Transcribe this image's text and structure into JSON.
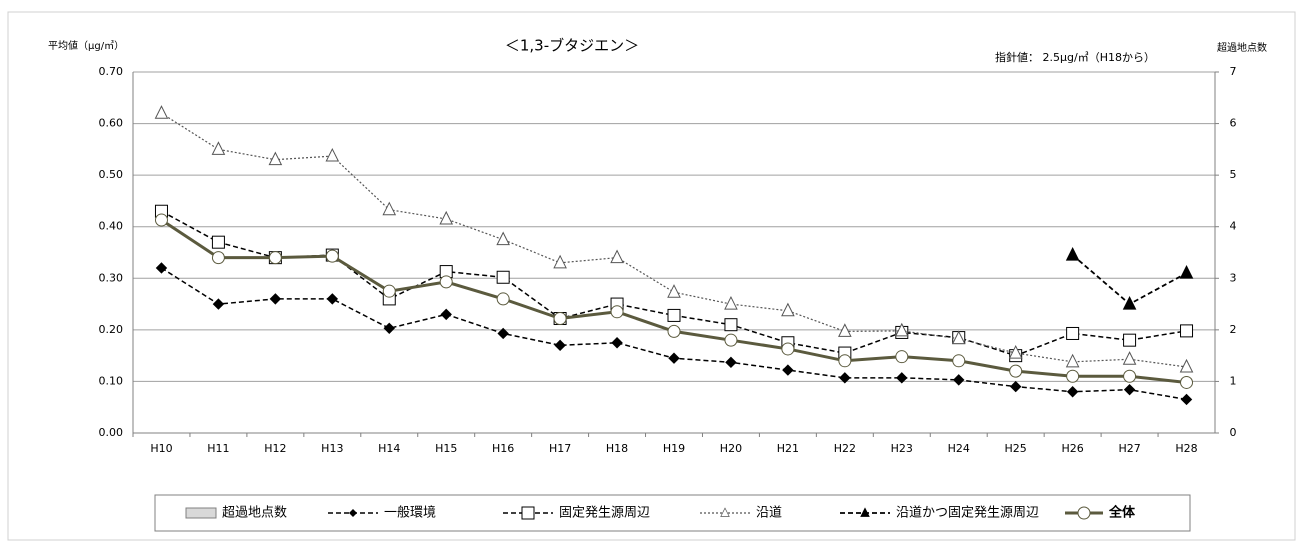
{
  "chart_data": {
    "type": "line",
    "title": "＜1,3-ブタジエン＞",
    "y_label": "平均値（μg/㎥）",
    "y2_label": "超過地点数",
    "annotation": "指針値： 2.5μg/㎥（H18から）",
    "categories": [
      "H10",
      "H11",
      "H12",
      "H13",
      "H14",
      "H15",
      "H16",
      "H17",
      "H18",
      "H19",
      "H20",
      "H21",
      "H22",
      "H23",
      "H24",
      "H25",
      "H26",
      "H27",
      "H28"
    ],
    "ylim": [
      0,
      0.7
    ],
    "yticks": [
      {
        "value": 0,
        "label": "0.00"
      },
      {
        "value": 0.1,
        "label": "0.10"
      },
      {
        "value": 0.2,
        "label": "0.20"
      },
      {
        "value": 0.3,
        "label": "0.30"
      },
      {
        "value": 0.4,
        "label": "0.40"
      },
      {
        "value": 0.5,
        "label": "0.50"
      },
      {
        "value": 0.6,
        "label": "0.60"
      },
      {
        "value": 0.7,
        "label": "0.70"
      }
    ],
    "y2lim": [
      0,
      7
    ],
    "y2ticks": [
      0,
      1,
      2,
      3,
      4,
      5,
      6,
      7
    ],
    "grid": true,
    "series": [
      {
        "name": "超過地点数",
        "type": "bar",
        "axis": "y2",
        "color": "#d9d9d9",
        "values": [
          0,
          0,
          0,
          0,
          0,
          0,
          0,
          0,
          0,
          0,
          0,
          0,
          0,
          0,
          0,
          0,
          0,
          0,
          0
        ]
      },
      {
        "name": "一般環境",
        "color": "#000000",
        "values": [
          0.32,
          0.25,
          0.26,
          0.26,
          0.203,
          0.23,
          0.193,
          0.17,
          0.175,
          0.145,
          0.137,
          0.122,
          0.107,
          0.107,
          0.103,
          0.09,
          0.08,
          0.084,
          0.065
        ]
      },
      {
        "name": "固定発生源周辺",
        "color": "#000000",
        "values": [
          0.43,
          0.37,
          0.34,
          0.345,
          0.26,
          0.313,
          0.302,
          0.222,
          0.25,
          0.228,
          0.21,
          0.175,
          0.155,
          0.195,
          0.185,
          0.15,
          0.193,
          0.18,
          0.198
        ]
      },
      {
        "name": "沿道",
        "color": "#555555",
        "values": [
          0.62,
          0.55,
          0.53,
          0.537,
          0.433,
          0.415,
          0.375,
          0.33,
          0.34,
          0.273,
          0.25,
          0.237,
          0.197,
          0.198,
          0.183,
          0.155,
          0.138,
          0.143,
          0.128
        ]
      },
      {
        "name": "沿道かつ固定発生源周辺",
        "color": "#000000",
        "values": [
          null,
          null,
          null,
          null,
          null,
          null,
          null,
          null,
          null,
          null,
          null,
          null,
          null,
          null,
          null,
          null,
          0.345,
          0.25,
          0.31
        ]
      },
      {
        "name": "全体",
        "color": "#5b5a3e",
        "values": [
          0.413,
          0.34,
          0.34,
          0.343,
          0.275,
          0.293,
          0.26,
          0.222,
          0.235,
          0.197,
          0.18,
          0.163,
          0.14,
          0.148,
          0.14,
          0.12,
          0.11,
          0.11,
          0.098
        ]
      }
    ]
  }
}
